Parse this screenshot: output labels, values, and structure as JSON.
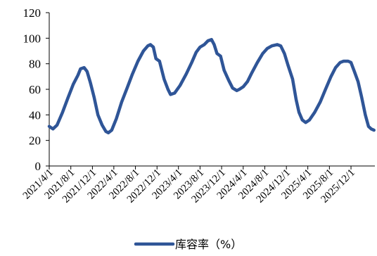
{
  "chart_data": {
    "type": "line",
    "title": "",
    "xlabel": "",
    "ylabel": "",
    "ylim": [
      0,
      120
    ],
    "y_ticks": [
      0,
      20,
      40,
      60,
      80,
      100,
      120
    ],
    "grid": false,
    "legend_position": "bottom",
    "x_range": [
      "2021-04-01",
      "2026-04-15"
    ],
    "x_tick_dates": [
      "2021-04-01",
      "2021-08-01",
      "2021-12-01",
      "2022-04-01",
      "2022-08-01",
      "2022-12-01",
      "2023-04-01",
      "2023-08-01",
      "2023-12-01",
      "2024-04-01",
      "2024-08-01",
      "2024-12-01",
      "2025-04-01",
      "2025-08-01",
      "2025-12-01"
    ],
    "x_tick_labels": [
      "2021/4/1",
      "2021/8/1",
      "2021/12/1",
      "2022/4/1",
      "2022/8/1",
      "2022/12/1",
      "2023/4/1",
      "2023/8/1",
      "2023/12/1",
      "2024/4/1",
      "2024/8/1",
      "2024/12/1",
      "2025/4/1",
      "2025/8/1",
      "2025/12/1"
    ],
    "series": [
      {
        "name": "库容率（%）",
        "color": "#2f5597",
        "points": [
          [
            "2021-04-01",
            31
          ],
          [
            "2021-04-22",
            29
          ],
          [
            "2021-05-15",
            32
          ],
          [
            "2021-06-15",
            42
          ],
          [
            "2021-07-15",
            53
          ],
          [
            "2021-08-15",
            64
          ],
          [
            "2021-09-10",
            71
          ],
          [
            "2021-09-25",
            76
          ],
          [
            "2021-10-15",
            77
          ],
          [
            "2021-11-01",
            74
          ],
          [
            "2021-11-20",
            65
          ],
          [
            "2021-12-10",
            54
          ],
          [
            "2022-01-01",
            40
          ],
          [
            "2022-01-25",
            32
          ],
          [
            "2022-02-15",
            27
          ],
          [
            "2022-03-01",
            26
          ],
          [
            "2022-03-20",
            28
          ],
          [
            "2022-04-15",
            37
          ],
          [
            "2022-05-15",
            50
          ],
          [
            "2022-06-15",
            61
          ],
          [
            "2022-07-15",
            72
          ],
          [
            "2022-08-15",
            82
          ],
          [
            "2022-09-15",
            90
          ],
          [
            "2022-10-10",
            94
          ],
          [
            "2022-10-25",
            95
          ],
          [
            "2022-11-10",
            93
          ],
          [
            "2022-11-25",
            84
          ],
          [
            "2022-12-15",
            82
          ],
          [
            "2023-01-10",
            68
          ],
          [
            "2023-02-01",
            60
          ],
          [
            "2023-02-15",
            56
          ],
          [
            "2023-03-10",
            57
          ],
          [
            "2023-04-10",
            63
          ],
          [
            "2023-05-15",
            72
          ],
          [
            "2023-06-15",
            81
          ],
          [
            "2023-07-10",
            89
          ],
          [
            "2023-08-01",
            93
          ],
          [
            "2023-08-25",
            95
          ],
          [
            "2023-09-15",
            98
          ],
          [
            "2023-10-05",
            99
          ],
          [
            "2023-10-20",
            95
          ],
          [
            "2023-11-05",
            88
          ],
          [
            "2023-11-25",
            86
          ],
          [
            "2023-12-15",
            75
          ],
          [
            "2024-01-10",
            67
          ],
          [
            "2024-02-01",
            61
          ],
          [
            "2024-02-25",
            59
          ],
          [
            "2024-03-10",
            60
          ],
          [
            "2024-04-01",
            62
          ],
          [
            "2024-04-25",
            66
          ],
          [
            "2024-05-20",
            73
          ],
          [
            "2024-06-20",
            81
          ],
          [
            "2024-07-20",
            88
          ],
          [
            "2024-08-15",
            92
          ],
          [
            "2024-09-10",
            94
          ],
          [
            "2024-10-10",
            95
          ],
          [
            "2024-10-30",
            94
          ],
          [
            "2024-11-20",
            88
          ],
          [
            "2024-12-10",
            79
          ],
          [
            "2025-01-05",
            68
          ],
          [
            "2025-01-25",
            52
          ],
          [
            "2025-02-10",
            42
          ],
          [
            "2025-03-01",
            36
          ],
          [
            "2025-03-20",
            34
          ],
          [
            "2025-04-10",
            36
          ],
          [
            "2025-05-10",
            42
          ],
          [
            "2025-06-10",
            50
          ],
          [
            "2025-07-10",
            60
          ],
          [
            "2025-08-10",
            70
          ],
          [
            "2025-09-05",
            77
          ],
          [
            "2025-10-01",
            81
          ],
          [
            "2025-10-20",
            82
          ],
          [
            "2025-11-15",
            82
          ],
          [
            "2025-12-01",
            81
          ],
          [
            "2025-12-20",
            74
          ],
          [
            "2026-01-10",
            66
          ],
          [
            "2026-01-30",
            54
          ],
          [
            "2026-02-20",
            40
          ],
          [
            "2026-03-10",
            31
          ],
          [
            "2026-03-25",
            29
          ],
          [
            "2026-04-10",
            28
          ]
        ]
      }
    ]
  }
}
